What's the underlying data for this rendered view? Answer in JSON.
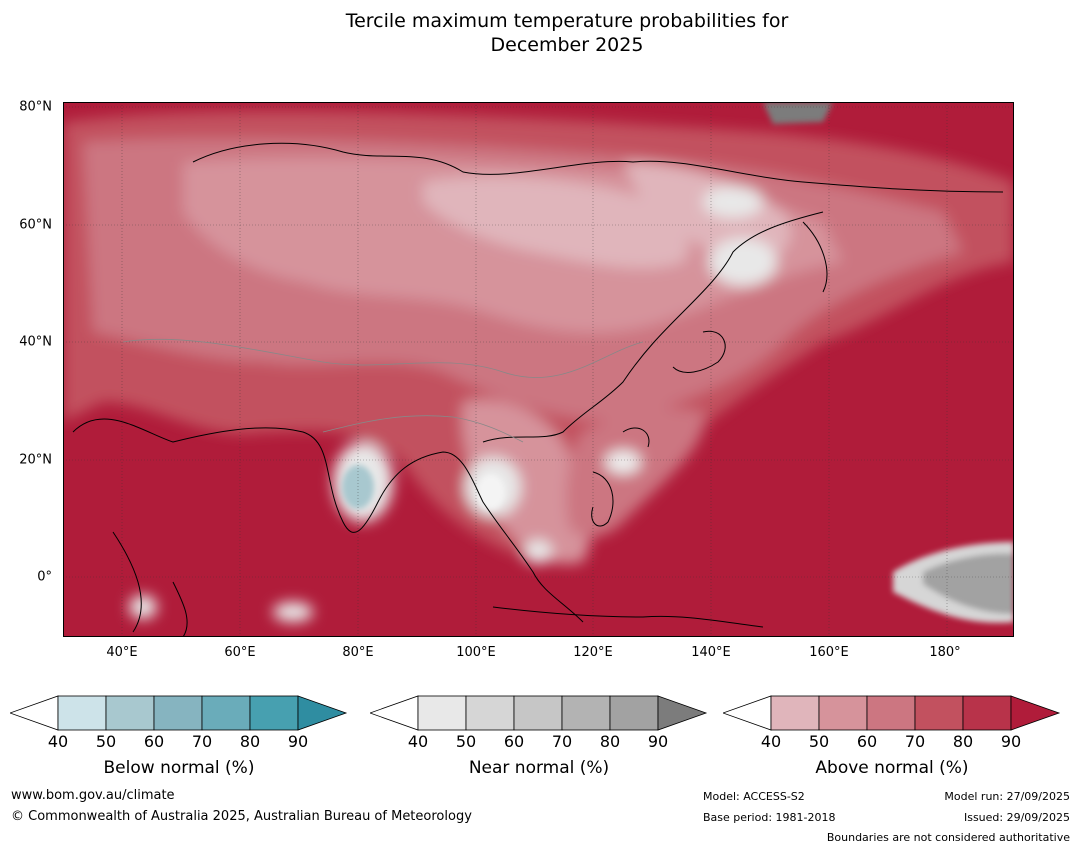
{
  "title_line1": "Tercile maximum temperature probabilities for",
  "title_line2": "December 2025",
  "map": {
    "lat_labels": [
      "80°N",
      "60°N",
      "40°N",
      "20°N",
      "0°"
    ],
    "lon_labels": [
      "40°E",
      "60°E",
      "80°E",
      "100°E",
      "120°E",
      "140°E",
      "160°E",
      "180°"
    ],
    "lat_range": [
      -10,
      81
    ],
    "lon_range": [
      30,
      191
    ]
  },
  "legends": [
    {
      "title": "Below normal (%)",
      "ticks": [
        "40",
        "50",
        "60",
        "70",
        "80",
        "90"
      ],
      "colors": [
        "#ffffff",
        "#cde3e9",
        "#a8c8cf",
        "#86b4c0",
        "#6aacba",
        "#47a0b0",
        "#2f8da1"
      ]
    },
    {
      "title": "Near normal (%)",
      "ticks": [
        "40",
        "50",
        "60",
        "70",
        "80",
        "90"
      ],
      "colors": [
        "#ffffff",
        "#e8e8e8",
        "#d6d6d6",
        "#c6c6c6",
        "#b3b3b3",
        "#a2a2a2",
        "#7c7c7c"
      ]
    },
    {
      "title": "Above normal (%)",
      "ticks": [
        "40",
        "50",
        "60",
        "70",
        "80",
        "90"
      ],
      "colors": [
        "#ffffff",
        "#e0b5bb",
        "#d6939b",
        "#cc7681",
        "#c2515f",
        "#b8334a",
        "#b01c3a"
      ]
    }
  ],
  "footer": {
    "url": "www.bom.gov.au/climate",
    "copyright": "© Commonwealth of Australia 2025, Australian Bureau of Meteorology",
    "model": "Model: ACCESS-S2",
    "base_period": "Base period: 1981-2018",
    "model_run": "Model run: 27/09/2025",
    "issued": "Issued: 29/09/2025",
    "disclaimer": "Boundaries are not considered authoritative"
  }
}
